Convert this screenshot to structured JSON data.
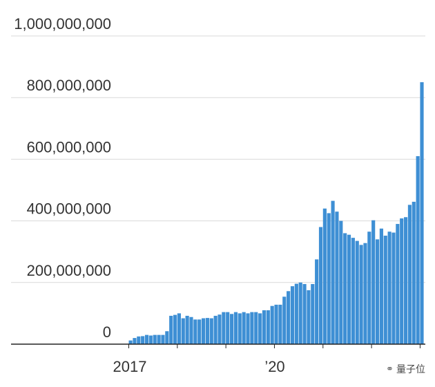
{
  "chart_data": {
    "type": "bar",
    "title": "",
    "xlabel": "",
    "ylabel": "",
    "ylim": [
      0,
      1000000000
    ],
    "y_ticks": [
      0,
      200000000,
      400000000,
      600000000,
      800000000,
      1000000000
    ],
    "y_tick_labels": [
      "0",
      "200,000,000",
      "400,000,000",
      "600,000,000",
      "800,000,000",
      "1,000,000,000"
    ],
    "x_tick_labels": [
      "2017",
      "’20"
    ],
    "grid": true,
    "color": "#3e8fd4",
    "categories": [
      "2017-01",
      "2017-02",
      "2017-03",
      "2017-04",
      "2017-05",
      "2017-06",
      "2017-07",
      "2017-08",
      "2017-09",
      "2017-10",
      "2017-11",
      "2017-12",
      "2018-01",
      "2018-02",
      "2018-03",
      "2018-04",
      "2018-05",
      "2018-06",
      "2018-07",
      "2018-08",
      "2018-09",
      "2018-10",
      "2018-11",
      "2018-12",
      "2019-01",
      "2019-02",
      "2019-03",
      "2019-04",
      "2019-05",
      "2019-06",
      "2019-07",
      "2019-08",
      "2019-09",
      "2019-10",
      "2019-11",
      "2019-12",
      "2020-01",
      "2020-02",
      "2020-03",
      "2020-04",
      "2020-05",
      "2020-06",
      "2020-07",
      "2020-08",
      "2020-09",
      "2020-10",
      "2020-11",
      "2020-12",
      "2021-01",
      "2021-02",
      "2021-03",
      "2021-04",
      "2021-05",
      "2021-06",
      "2021-07",
      "2021-08",
      "2021-09",
      "2021-10",
      "2021-11",
      "2021-12",
      "2022-01",
      "2022-02",
      "2022-03",
      "2022-04",
      "2022-05",
      "2022-06",
      "2022-07",
      "2022-08",
      "2022-09",
      "2022-10",
      "2022-11",
      "2022-12",
      "2023-01"
    ],
    "values": [
      12000000,
      20000000,
      25000000,
      26000000,
      30000000,
      28000000,
      30000000,
      30000000,
      30000000,
      42000000,
      92000000,
      95000000,
      100000000,
      84000000,
      92000000,
      88000000,
      80000000,
      80000000,
      84000000,
      85000000,
      84000000,
      92000000,
      96000000,
      104000000,
      104000000,
      98000000,
      104000000,
      100000000,
      104000000,
      100000000,
      104000000,
      104000000,
      100000000,
      110000000,
      110000000,
      124000000,
      128000000,
      128000000,
      154000000,
      172000000,
      188000000,
      196000000,
      200000000,
      195000000,
      175000000,
      195000000,
      275000000,
      380000000,
      440000000,
      425000000,
      465000000,
      430000000,
      400000000,
      360000000,
      355000000,
      345000000,
      335000000,
      322000000,
      328000000,
      365000000,
      402000000,
      340000000,
      375000000,
      352000000,
      365000000,
      362000000,
      390000000,
      408000000,
      412000000,
      452000000,
      462000000,
      610000000,
      850000000
    ]
  },
  "watermark": {
    "icon": "wechat-icon",
    "text": "量子位"
  }
}
